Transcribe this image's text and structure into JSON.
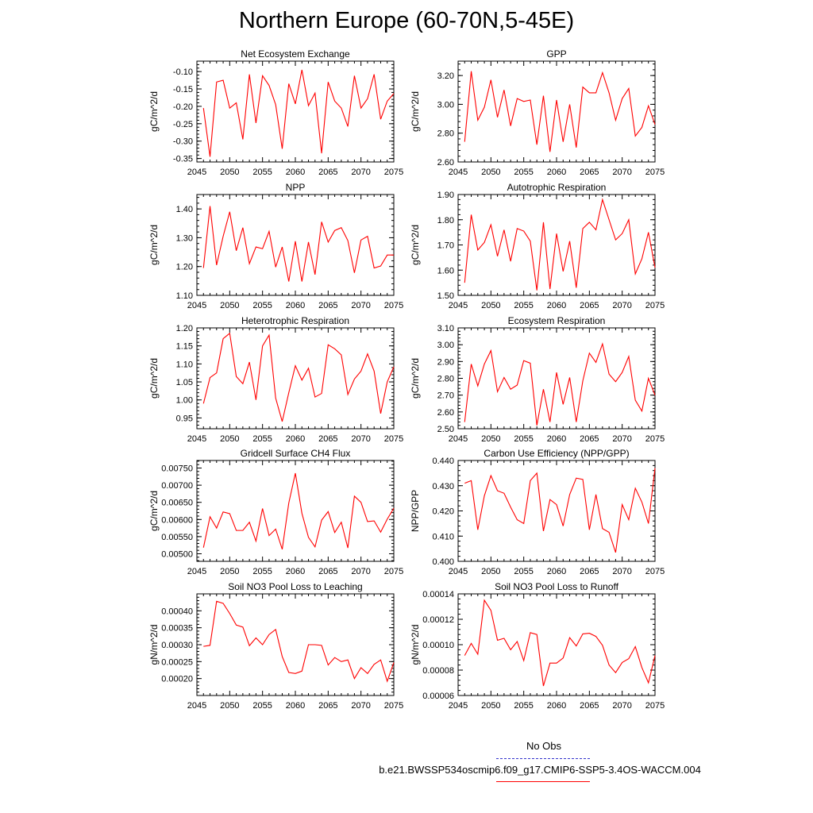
{
  "title": "Northern Europe (60-70N,5-45E)",
  "legend": {
    "obs_label": "No Obs",
    "case_label": "b.e21.BWSSP534oscmip6.f09_g17.CMIP6-SSP5-3.4OS-WACCM.004",
    "obs_color": "#3333cc",
    "case_color": "#ff0000"
  },
  "chart_data": [
    {
      "type": "line",
      "title": "Net Ecosystem Exchange",
      "ylabel": "gC/m^2/d",
      "xlim": [
        2045,
        2075
      ],
      "ylim": [
        -0.36,
        -0.07
      ],
      "xticks": [
        2045,
        2050,
        2055,
        2060,
        2065,
        2070,
        2075
      ],
      "yticks": [
        "-0.35",
        "-0.30",
        "-0.25",
        "-0.20",
        "-0.15",
        "-0.10"
      ],
      "ytick_values": [
        -0.35,
        -0.3,
        -0.25,
        -0.2,
        -0.15,
        -0.1
      ],
      "x": [
        2046,
        2047,
        2048,
        2049,
        2050,
        2051,
        2052,
        2053,
        2054,
        2055,
        2056,
        2057,
        2058,
        2059,
        2060,
        2061,
        2062,
        2063,
        2064,
        2065,
        2066,
        2067,
        2068,
        2069,
        2070,
        2071,
        2072,
        2073,
        2074,
        2075
      ],
      "values": [
        -0.205,
        -0.345,
        -0.13,
        -0.125,
        -0.205,
        -0.19,
        -0.295,
        -0.108,
        -0.248,
        -0.112,
        -0.14,
        -0.195,
        -0.322,
        -0.135,
        -0.193,
        -0.095,
        -0.198,
        -0.162,
        -0.335,
        -0.13,
        -0.185,
        -0.205,
        -0.258,
        -0.112,
        -0.205,
        -0.178,
        -0.108,
        -0.237,
        -0.185,
        -0.163
      ]
    },
    {
      "type": "line",
      "title": "GPP",
      "ylabel": "gC/m^2/d",
      "xlim": [
        2045,
        2075
      ],
      "ylim": [
        2.6,
        3.3
      ],
      "xticks": [
        2045,
        2050,
        2055,
        2060,
        2065,
        2070,
        2075
      ],
      "yticks": [
        "2.60",
        "2.80",
        "3.00",
        "3.20"
      ],
      "ytick_values": [
        2.6,
        2.8,
        3.0,
        3.2
      ],
      "x": [
        2046,
        2047,
        2048,
        2049,
        2050,
        2051,
        2052,
        2053,
        2054,
        2055,
        2056,
        2057,
        2058,
        2059,
        2060,
        2061,
        2062,
        2063,
        2064,
        2065,
        2066,
        2067,
        2068,
        2069,
        2070,
        2071,
        2072,
        2073,
        2074,
        2075
      ],
      "values": [
        2.74,
        3.23,
        2.89,
        2.98,
        3.17,
        2.91,
        3.1,
        2.85,
        3.04,
        3.02,
        3.03,
        2.72,
        3.06,
        2.67,
        3.03,
        2.74,
        3.0,
        2.7,
        3.12,
        3.08,
        3.08,
        3.22,
        3.08,
        2.89,
        3.04,
        3.11,
        2.78,
        2.84,
        2.99,
        2.86
      ]
    },
    {
      "type": "line",
      "title": "NPP",
      "ylabel": "gC/m^2/d",
      "xlim": [
        2045,
        2075
      ],
      "ylim": [
        1.1,
        1.45
      ],
      "xticks": [
        2045,
        2050,
        2055,
        2060,
        2065,
        2070,
        2075
      ],
      "yticks": [
        "1.10",
        "1.20",
        "1.30",
        "1.40"
      ],
      "ytick_values": [
        1.1,
        1.2,
        1.3,
        1.4
      ],
      "x": [
        2046,
        2047,
        2048,
        2049,
        2050,
        2051,
        2052,
        2053,
        2054,
        2055,
        2056,
        2057,
        2058,
        2059,
        2060,
        2061,
        2062,
        2063,
        2064,
        2065,
        2066,
        2067,
        2068,
        2069,
        2070,
        2071,
        2072,
        2073,
        2074,
        2075
      ],
      "values": [
        1.195,
        1.41,
        1.205,
        1.305,
        1.39,
        1.255,
        1.335,
        1.21,
        1.268,
        1.262,
        1.322,
        1.198,
        1.268,
        1.148,
        1.288,
        1.148,
        1.285,
        1.172,
        1.355,
        1.285,
        1.325,
        1.335,
        1.29,
        1.178,
        1.292,
        1.305,
        1.195,
        1.202,
        1.24,
        1.24
      ]
    },
    {
      "type": "line",
      "title": "Autotrophic Respiration",
      "ylabel": "gC/m^2/d",
      "xlim": [
        2045,
        2075
      ],
      "ylim": [
        1.5,
        1.9
      ],
      "xticks": [
        2045,
        2050,
        2055,
        2060,
        2065,
        2070,
        2075
      ],
      "yticks": [
        "1.50",
        "1.60",
        "1.70",
        "1.80",
        "1.90"
      ],
      "ytick_values": [
        1.5,
        1.6,
        1.7,
        1.8,
        1.9
      ],
      "x": [
        2046,
        2047,
        2048,
        2049,
        2050,
        2051,
        2052,
        2053,
        2054,
        2055,
        2056,
        2057,
        2058,
        2059,
        2060,
        2061,
        2062,
        2063,
        2064,
        2065,
        2066,
        2067,
        2068,
        2069,
        2070,
        2071,
        2072,
        2073,
        2074,
        2075
      ],
      "values": [
        1.55,
        1.82,
        1.68,
        1.71,
        1.78,
        1.655,
        1.76,
        1.635,
        1.765,
        1.755,
        1.715,
        1.52,
        1.79,
        1.525,
        1.745,
        1.595,
        1.715,
        1.53,
        1.765,
        1.79,
        1.76,
        1.88,
        1.8,
        1.72,
        1.745,
        1.8,
        1.585,
        1.645,
        1.75,
        1.61
      ]
    },
    {
      "type": "line",
      "title": "Heterotrophic Respiration",
      "ylabel": "gC/m^2/d",
      "xlim": [
        2045,
        2075
      ],
      "ylim": [
        0.92,
        1.2
      ],
      "xticks": [
        2045,
        2050,
        2055,
        2060,
        2065,
        2070,
        2075
      ],
      "yticks": [
        "0.95",
        "1.00",
        "1.05",
        "1.10",
        "1.15",
        "1.20"
      ],
      "ytick_values": [
        0.95,
        1.0,
        1.05,
        1.1,
        1.15,
        1.2
      ],
      "x": [
        2046,
        2047,
        2048,
        2049,
        2050,
        2051,
        2052,
        2053,
        2054,
        2055,
        2056,
        2057,
        2058,
        2059,
        2060,
        2061,
        2062,
        2063,
        2064,
        2065,
        2066,
        2067,
        2068,
        2069,
        2070,
        2071,
        2072,
        2073,
        2074,
        2075
      ],
      "values": [
        0.99,
        1.062,
        1.075,
        1.17,
        1.185,
        1.065,
        1.045,
        1.105,
        1.0,
        1.15,
        1.18,
        1.005,
        0.94,
        1.02,
        1.095,
        1.055,
        1.088,
        1.008,
        1.018,
        1.153,
        1.142,
        1.125,
        1.015,
        1.058,
        1.08,
        1.128,
        1.08,
        0.962,
        1.05,
        1.092
      ]
    },
    {
      "type": "line",
      "title": "Ecosystem Respiration",
      "ylabel": "gC/m^2/d",
      "xlim": [
        2045,
        2075
      ],
      "ylim": [
        2.5,
        3.1
      ],
      "xticks": [
        2045,
        2050,
        2055,
        2060,
        2065,
        2070,
        2075
      ],
      "yticks": [
        "2.50",
        "2.60",
        "2.70",
        "2.80",
        "2.90",
        "3.00",
        "3.10"
      ],
      "ytick_values": [
        2.5,
        2.6,
        2.7,
        2.8,
        2.9,
        3.0,
        3.1
      ],
      "x": [
        2046,
        2047,
        2048,
        2049,
        2050,
        2051,
        2052,
        2053,
        2054,
        2055,
        2056,
        2057,
        2058,
        2059,
        2060,
        2061,
        2062,
        2063,
        2064,
        2065,
        2066,
        2067,
        2068,
        2069,
        2070,
        2071,
        2072,
        2073,
        2074,
        2075
      ],
      "values": [
        2.54,
        2.885,
        2.755,
        2.885,
        2.965,
        2.72,
        2.805,
        2.735,
        2.76,
        2.905,
        2.89,
        2.52,
        2.735,
        2.54,
        2.835,
        2.645,
        2.805,
        2.54,
        2.785,
        2.95,
        2.895,
        3.005,
        2.825,
        2.78,
        2.835,
        2.93,
        2.67,
        2.605,
        2.8,
        2.7
      ]
    },
    {
      "type": "line",
      "title": "Gridcell Surface CH4 Flux",
      "ylabel": "gC/m^2/d",
      "xlim": [
        2045,
        2075
      ],
      "ylim": [
        0.00478,
        0.00772
      ],
      "xticks": [
        2045,
        2050,
        2055,
        2060,
        2065,
        2070,
        2075
      ],
      "yticks": [
        "0.00500",
        "0.00550",
        "0.00600",
        "0.00650",
        "0.00700",
        "0.00750"
      ],
      "ytick_values": [
        0.005,
        0.0055,
        0.006,
        0.0065,
        0.007,
        0.0075
      ],
      "x": [
        2046,
        2047,
        2048,
        2049,
        2050,
        2051,
        2052,
        2053,
        2054,
        2055,
        2056,
        2057,
        2058,
        2059,
        2060,
        2061,
        2062,
        2063,
        2064,
        2065,
        2066,
        2067,
        2068,
        2069,
        2070,
        2071,
        2072,
        2073,
        2074,
        2075
      ],
      "values": [
        0.00518,
        0.00608,
        0.00575,
        0.00622,
        0.00617,
        0.00568,
        0.00568,
        0.00592,
        0.00537,
        0.00632,
        0.00553,
        0.00572,
        0.00513,
        0.00648,
        0.00735,
        0.00618,
        0.00548,
        0.0052,
        0.00598,
        0.00623,
        0.00562,
        0.00592,
        0.00517,
        0.00668,
        0.0065,
        0.00594,
        0.00596,
        0.00563,
        0.00601,
        0.00633
      ]
    },
    {
      "type": "line",
      "title": "Carbon Use Efficiency (NPP/GPP)",
      "ylabel": "NPP/GPP",
      "xlim": [
        2045,
        2075
      ],
      "ylim": [
        0.4,
        0.44
      ],
      "xticks": [
        2045,
        2050,
        2055,
        2060,
        2065,
        2070,
        2075
      ],
      "yticks": [
        "0.400",
        "0.410",
        "0.420",
        "0.430",
        "0.440"
      ],
      "ytick_values": [
        0.4,
        0.41,
        0.42,
        0.43,
        0.44
      ],
      "x": [
        2046,
        2047,
        2048,
        2049,
        2050,
        2051,
        2052,
        2053,
        2054,
        2055,
        2056,
        2057,
        2058,
        2059,
        2060,
        2061,
        2062,
        2063,
        2064,
        2065,
        2066,
        2067,
        2068,
        2069,
        2070,
        2071,
        2072,
        2073,
        2074,
        2075
      ],
      "values": [
        0.431,
        0.432,
        0.4125,
        0.426,
        0.434,
        0.428,
        0.427,
        0.4215,
        0.4165,
        0.415,
        0.432,
        0.435,
        0.412,
        0.4245,
        0.4225,
        0.414,
        0.4265,
        0.433,
        0.4325,
        0.4125,
        0.4265,
        0.413,
        0.4115,
        0.4035,
        0.4225,
        0.4165,
        0.429,
        0.4235,
        0.415,
        0.437
      ]
    },
    {
      "type": "line",
      "title": "Soil NO3 Pool Loss to Leaching",
      "ylabel": "gN/m^2/d",
      "xlim": [
        2045,
        2075
      ],
      "ylim": [
        0.00015,
        0.00045
      ],
      "xticks": [
        2045,
        2050,
        2055,
        2060,
        2065,
        2070,
        2075
      ],
      "yticks": [
        "0.00020",
        "0.00025",
        "0.00030",
        "0.00035",
        "0.00040"
      ],
      "ytick_values": [
        0.0002,
        0.00025,
        0.0003,
        0.00035,
        0.0004
      ],
      "x": [
        2046,
        2047,
        2048,
        2049,
        2050,
        2051,
        2052,
        2053,
        2054,
        2055,
        2056,
        2057,
        2058,
        2059,
        2060,
        2061,
        2062,
        2063,
        2064,
        2065,
        2066,
        2067,
        2068,
        2069,
        2070,
        2071,
        2072,
        2073,
        2074,
        2075
      ],
      "values": [
        0.000295,
        0.000298,
        0.000428,
        0.000422,
        0.000392,
        0.000358,
        0.000352,
        0.000297,
        0.00032,
        0.0003,
        0.00033,
        0.000345,
        0.000265,
        0.000218,
        0.000215,
        0.000222,
        0.0003,
        0.0003,
        0.000298,
        0.00024,
        0.000262,
        0.00025,
        0.000255,
        0.0002,
        0.000232,
        0.000215,
        0.000242,
        0.000255,
        0.000192,
        0.000247
      ]
    },
    {
      "type": "line",
      "title": "Soil NO3 Pool Loss to Runoff",
      "ylabel": "gN/m^2/d",
      "xlim": [
        2045,
        2075
      ],
      "ylim": [
        6e-05,
        0.00014
      ],
      "xticks": [
        2045,
        2050,
        2055,
        2060,
        2065,
        2070,
        2075
      ],
      "yticks": [
        "0.00006",
        "0.00008",
        "0.00010",
        "0.00012",
        "0.00014"
      ],
      "ytick_values": [
        6e-05,
        8e-05,
        0.0001,
        0.00012,
        0.00014
      ],
      "x": [
        2046,
        2047,
        2048,
        2049,
        2050,
        2051,
        2052,
        2053,
        2054,
        2055,
        2056,
        2057,
        2058,
        2059,
        2060,
        2061,
        2062,
        2063,
        2064,
        2065,
        2066,
        2067,
        2068,
        2069,
        2070,
        2071,
        2072,
        2073,
        2074,
        2075
      ],
      "values": [
        9.15e-05,
        0.000101,
        9.25e-05,
        0.000135,
        0.000127,
        0.0001035,
        0.000105,
        9.6e-05,
        0.0001025,
        8.75e-05,
        0.0001095,
        0.000108,
        6.75e-05,
        8.55e-05,
        8.55e-05,
        8.95e-05,
        0.0001055,
        9.9e-05,
        0.0001085,
        0.000109,
        0.0001065,
        9.95e-05,
        8.4e-05,
        7.8e-05,
        8.6e-05,
        8.9e-05,
        9.85e-05,
        8.2e-05,
        7e-05,
        9.15e-05
      ]
    }
  ]
}
